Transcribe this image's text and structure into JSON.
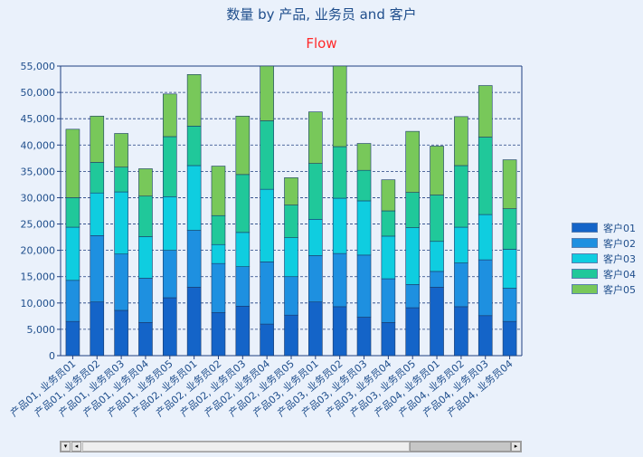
{
  "chart_data": {
    "type": "bar",
    "stacked": true,
    "title": "数量 by 产品, 业务员 and 客户",
    "subtitle": "Flow",
    "ylim": [
      0,
      55000
    ],
    "yticks": [
      "0",
      "5,000",
      "10,000",
      "15,000",
      "20,000",
      "25,000",
      "30,000",
      "35,000",
      "40,000",
      "45,000",
      "50,000",
      "55,000"
    ],
    "grid": "horizontal dashed",
    "legend_position": "right",
    "categories": [
      "产品01, 业务员01",
      "产品01, 业务员02",
      "产品01, 业务员03",
      "产品01, 业务员04",
      "产品01, 业务员05",
      "产品02, 业务员01",
      "产品02, 业务员02",
      "产品02, 业务员03",
      "产品02, 业务员04",
      "产品02, 业务员05",
      "产品03, 业务员01",
      "产品03, 业务员02",
      "产品03, 业务员03",
      "产品03, 业务员04",
      "产品03, 业务员05",
      "产品04, 业务员01",
      "产品04, 业务员02",
      "产品04, 业务员03",
      "产品04, 业务员04"
    ],
    "series": [
      {
        "name": "客户01",
        "color": "#1464c8",
        "values": [
          6500,
          10200,
          8600,
          6300,
          11000,
          13000,
          8200,
          9400,
          6000,
          7700,
          10200,
          9300,
          7300,
          6300,
          9100,
          13000,
          9300,
          7600,
          6500
        ]
      },
      {
        "name": "客户02",
        "color": "#1e90e0",
        "values": [
          7800,
          12600,
          10700,
          8400,
          9000,
          10800,
          9300,
          7500,
          11800,
          7300,
          8800,
          10100,
          11800,
          8300,
          4400,
          3000,
          8300,
          10600,
          6300
        ]
      },
      {
        "name": "客户03",
        "color": "#0fcde0",
        "values": [
          10100,
          8100,
          11800,
          7900,
          10200,
          12300,
          3600,
          6500,
          13800,
          7400,
          6900,
          10500,
          10300,
          8100,
          10800,
          5700,
          6800,
          8600,
          7400
        ]
      },
      {
        "name": "客户04",
        "color": "#20c89a",
        "values": [
          5600,
          5800,
          4700,
          7700,
          11400,
          7500,
          5500,
          11000,
          13000,
          6200,
          10600,
          9800,
          5800,
          4800,
          6700,
          8800,
          11700,
          14700,
          7700
        ]
      },
      {
        "name": "客户05",
        "color": "#78c85a",
        "values": [
          13000,
          8800,
          6400,
          5200,
          8100,
          9800,
          9400,
          11100,
          10400,
          5200,
          9800,
          15300,
          5100,
          5900,
          11600,
          9300,
          9300,
          9800,
          9300
        ]
      }
    ]
  }
}
